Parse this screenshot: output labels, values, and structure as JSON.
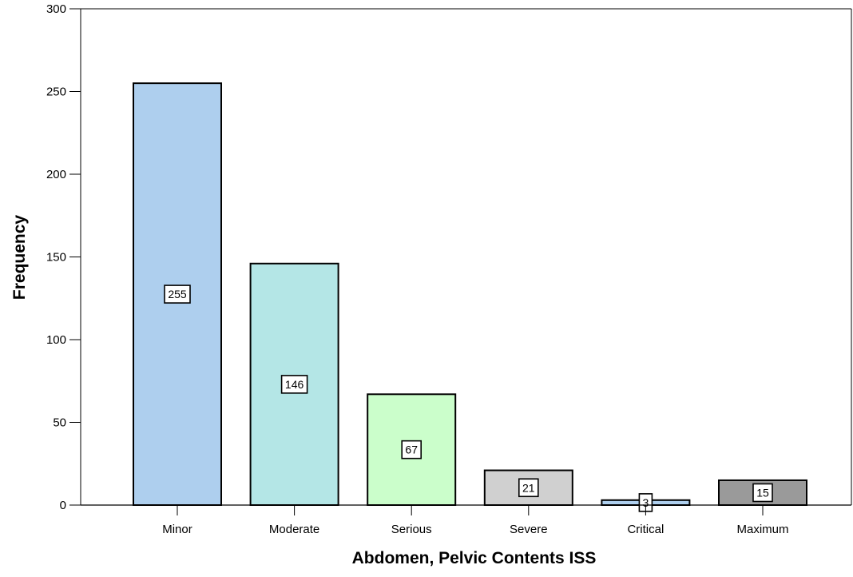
{
  "chart_data": {
    "type": "bar",
    "title": "",
    "xlabel": "Abdomen, Pelvic Contents ISS",
    "ylabel": "Frequency",
    "categories": [
      "Minor",
      "Moderate",
      "Serious",
      "Severe",
      "Critical",
      "Maximum"
    ],
    "values": [
      255,
      146,
      67,
      21,
      3,
      15
    ],
    "data_labels": [
      "255",
      "146",
      "67",
      "21",
      "3",
      "15"
    ],
    "colors": [
      "#aecfee",
      "#b4e6e6",
      "#cbfecb",
      "#d0d0d0",
      "#aecfee",
      "#9a9a9a"
    ],
    "ylim": [
      0,
      300
    ],
    "yticks": [
      0,
      50,
      100,
      150,
      200,
      250,
      300
    ],
    "ytick_labels": [
      "0",
      "50",
      "100",
      "150",
      "200",
      "250",
      "300"
    ],
    "grid": false,
    "legend": "none"
  }
}
